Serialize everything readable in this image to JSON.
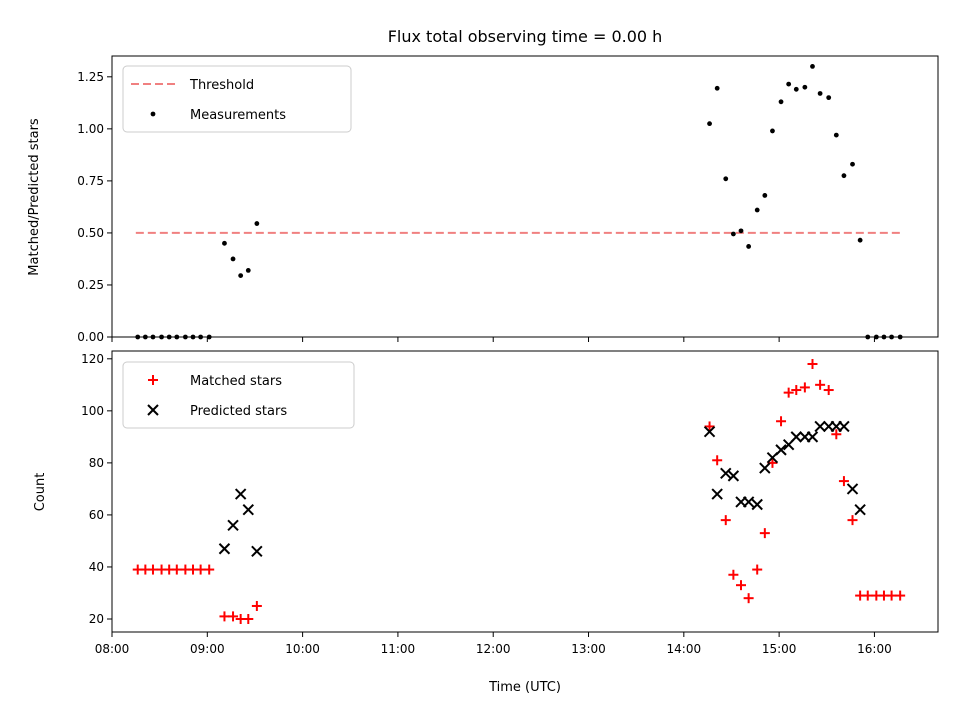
{
  "chart_data": [
    {
      "type": "scatter",
      "title": "Flux total observing time = 0.00 h",
      "xlabel": "",
      "ylabel": "Matched/Predicted stars",
      "xlim": [
        8.0,
        16.667
      ],
      "ylim": [
        0.0,
        1.35
      ],
      "yticks": [
        0.0,
        0.25,
        0.5,
        0.75,
        1.0,
        1.25
      ],
      "ytick_labels": [
        "0.00",
        "0.25",
        "0.50",
        "0.75",
        "1.00",
        "1.25"
      ],
      "legend_position": "top-left",
      "threshold": {
        "name": "Threshold",
        "value": 0.5,
        "x_range": [
          8.25,
          16.3
        ],
        "color": "#f08080"
      },
      "series": [
        {
          "name": "Measurements",
          "color": "#000000",
          "marker": "dot",
          "x": [
            8.27,
            8.35,
            8.43,
            8.52,
            8.6,
            8.68,
            8.77,
            8.85,
            8.93,
            9.02,
            9.18,
            9.27,
            9.35,
            9.43,
            9.52,
            14.27,
            14.35,
            14.44,
            14.52,
            14.6,
            14.68,
            14.77,
            14.85,
            14.93,
            15.02,
            15.1,
            15.18,
            15.27,
            15.35,
            15.43,
            15.52,
            15.6,
            15.68,
            15.77,
            15.85,
            15.93,
            16.02,
            16.1,
            16.18,
            16.27
          ],
          "y": [
            0,
            0,
            0,
            0,
            0,
            0,
            0,
            0,
            0,
            0,
            0.45,
            0.375,
            0.295,
            0.32,
            0.545,
            1.025,
            1.195,
            0.76,
            0.495,
            0.51,
            0.435,
            0.61,
            0.68,
            0.99,
            1.13,
            1.215,
            1.19,
            1.2,
            1.3,
            1.17,
            1.15,
            0.97,
            0.775,
            0.83,
            0.465,
            0,
            0,
            0,
            0,
            0
          ]
        }
      ]
    },
    {
      "type": "scatter",
      "title": "",
      "xlabel": "Time (UTC)",
      "ylabel": "Count",
      "xlim": [
        8.0,
        16.667
      ],
      "ylim": [
        15,
        123
      ],
      "yticks": [
        20,
        40,
        60,
        80,
        100,
        120
      ],
      "ytick_labels": [
        "20",
        "40",
        "60",
        "80",
        "100",
        "120"
      ],
      "xticks": [
        8,
        9,
        10,
        11,
        12,
        13,
        14,
        15,
        16
      ],
      "xtick_labels": [
        "08:00",
        "09:00",
        "10:00",
        "11:00",
        "12:00",
        "13:00",
        "14:00",
        "15:00",
        "16:00"
      ],
      "legend_position": "top-left",
      "series": [
        {
          "name": "Matched stars",
          "color": "#ff0000",
          "marker": "plus",
          "x": [
            8.27,
            8.35,
            8.43,
            8.52,
            8.6,
            8.68,
            8.77,
            8.85,
            8.93,
            9.02,
            9.18,
            9.27,
            9.35,
            9.43,
            9.52,
            14.27,
            14.35,
            14.44,
            14.52,
            14.6,
            14.68,
            14.77,
            14.85,
            14.93,
            15.02,
            15.1,
            15.18,
            15.27,
            15.35,
            15.43,
            15.52,
            15.6,
            15.68,
            15.77,
            15.85,
            15.93,
            16.02,
            16.1,
            16.18,
            16.27
          ],
          "y": [
            39,
            39,
            39,
            39,
            39,
            39,
            39,
            39,
            39,
            39,
            21,
            21,
            20,
            20,
            25,
            94,
            81,
            58,
            37,
            33,
            28,
            39,
            53,
            80,
            96,
            107,
            108,
            109,
            118,
            110,
            108,
            91,
            73,
            58,
            29,
            29,
            29,
            29,
            29,
            29
          ]
        },
        {
          "name": "Predicted stars",
          "color": "#000000",
          "marker": "x",
          "x": [
            9.18,
            9.27,
            9.35,
            9.43,
            9.52,
            14.27,
            14.35,
            14.44,
            14.52,
            14.6,
            14.68,
            14.77,
            14.85,
            14.93,
            15.02,
            15.1,
            15.18,
            15.27,
            15.35,
            15.43,
            15.52,
            15.6,
            15.68,
            15.77,
            15.85
          ],
          "y": [
            47,
            56,
            68,
            62,
            46,
            92,
            68,
            76,
            75,
            65,
            65,
            64,
            78,
            82,
            85,
            87,
            90,
            90,
            90,
            94,
            94,
            94,
            94,
            70,
            62
          ]
        }
      ]
    }
  ]
}
